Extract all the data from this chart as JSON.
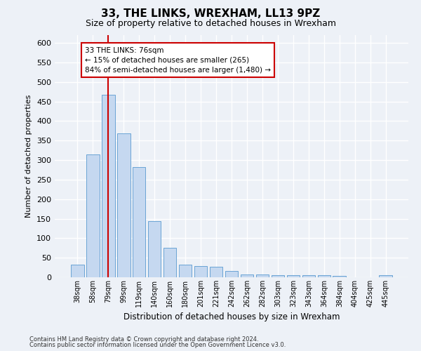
{
  "title": "33, THE LINKS, WREXHAM, LL13 9PZ",
  "subtitle": "Size of property relative to detached houses in Wrexham",
  "xlabel": "Distribution of detached houses by size in Wrexham",
  "ylabel": "Number of detached properties",
  "bar_color": "#c5d8f0",
  "bar_edge_color": "#6aa3d5",
  "categories": [
    "38sqm",
    "58sqm",
    "79sqm",
    "99sqm",
    "119sqm",
    "140sqm",
    "160sqm",
    "180sqm",
    "201sqm",
    "221sqm",
    "242sqm",
    "262sqm",
    "282sqm",
    "303sqm",
    "323sqm",
    "343sqm",
    "364sqm",
    "384sqm",
    "404sqm",
    "425sqm",
    "445sqm"
  ],
  "values": [
    32,
    315,
    468,
    368,
    283,
    143,
    76,
    32,
    29,
    27,
    16,
    8,
    7,
    6,
    5,
    5,
    5,
    4,
    0,
    0,
    5
  ],
  "vline_x": 2.0,
  "annotation_line1": "33 THE LINKS: 76sqm",
  "annotation_line2": "← 15% of detached houses are smaller (265)",
  "annotation_line3": "84% of semi-detached houses are larger (1,480) →",
  "annotation_box_color": "#ffffff",
  "annotation_border_color": "#cc0000",
  "ylim": [
    0,
    620
  ],
  "yticks": [
    0,
    50,
    100,
    150,
    200,
    250,
    300,
    350,
    400,
    450,
    500,
    550,
    600
  ],
  "footer_line1": "Contains HM Land Registry data © Crown copyright and database right 2024.",
  "footer_line2": "Contains public sector information licensed under the Open Government Licence v3.0.",
  "bg_color": "#edf1f7",
  "plot_bg_color": "#edf1f7",
  "grid_color": "#ffffff",
  "vline_color": "#cc0000",
  "title_fontsize": 11,
  "subtitle_fontsize": 9,
  "ylabel_fontsize": 8,
  "xlabel_fontsize": 8.5
}
